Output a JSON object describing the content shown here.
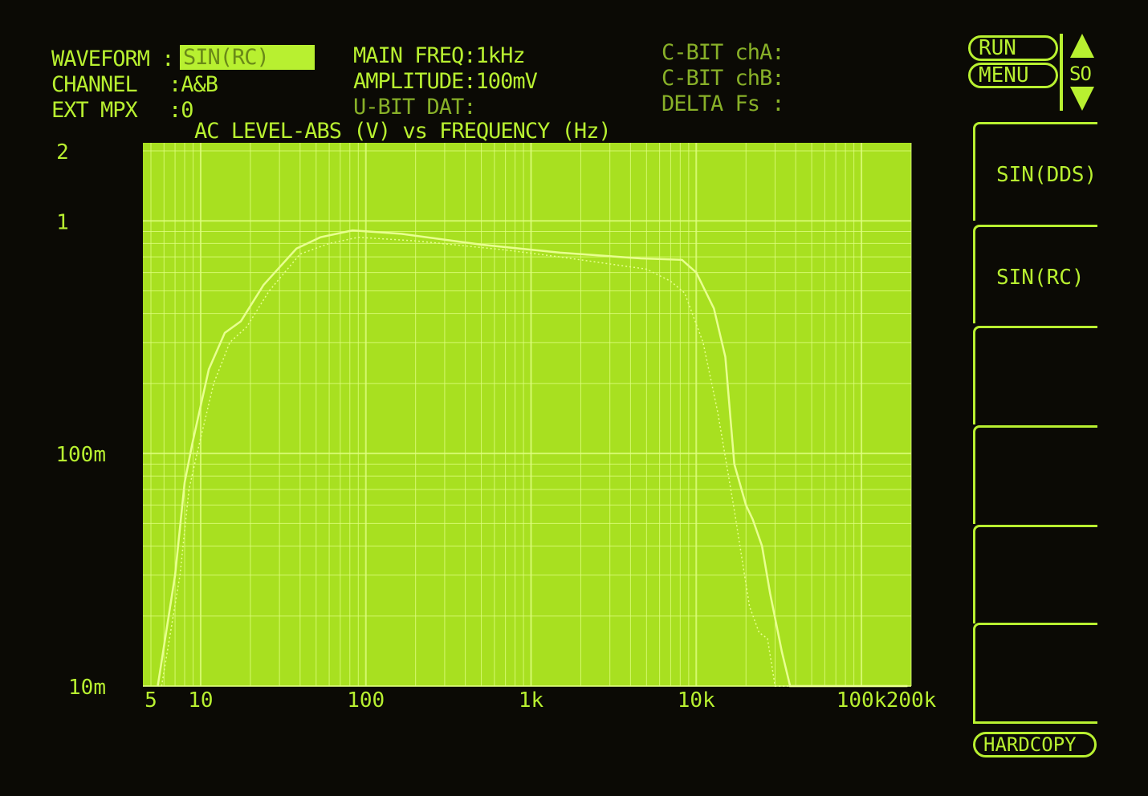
{
  "header": {
    "waveform_label": "WAVEFORM :",
    "waveform_value": "SIN(RC)",
    "channel_label": "CHANNEL",
    "channel_value": ":A&B",
    "ext_mpx_label": "EXT MPX",
    "ext_mpx_value": ":0",
    "main_freq": "MAIN FREQ:1kHz",
    "amplitude": "AMPLITUDE:100mV",
    "ubit": "U-BIT DAT:",
    "cbit_a": "C-BIT chA:",
    "cbit_b": "C-BIT chB:",
    "delta_fs": "DELTA Fs :"
  },
  "controls": {
    "run": "RUN",
    "menu": "MENU",
    "so": "SO",
    "hardcopy": "HARDCOPY"
  },
  "softkeys": [
    "SIN(DDS)",
    "SIN(RC)",
    "",
    "",
    "",
    ""
  ],
  "colors": {
    "screen": "#a8e020",
    "trace": "#e8ff90",
    "text": "#b8f030",
    "background": "#0b0a05"
  },
  "chart_data": {
    "type": "line",
    "title": "AC LEVEL-ABS (V) vs FREQUENCY (Hz)",
    "x_scale": "log",
    "y_scale": "log",
    "xlim": [
      5,
      200000
    ],
    "ylim": [
      0.01,
      2
    ],
    "x_ticks": [
      {
        "v": 5,
        "label": "5"
      },
      {
        "v": 10,
        "label": "10"
      },
      {
        "v": 100,
        "label": "100"
      },
      {
        "v": 1000,
        "label": "1k"
      },
      {
        "v": 10000,
        "label": "10k"
      },
      {
        "v": 100000,
        "label": "100k"
      },
      {
        "v": 200000,
        "label": "200k"
      }
    ],
    "y_ticks": [
      {
        "v": 2,
        "label": "2"
      },
      {
        "v": 1,
        "label": "1"
      },
      {
        "v": 0.1,
        "label": "100m"
      },
      {
        "v": 0.01,
        "label": "10m"
      }
    ],
    "grid": true,
    "series": [
      {
        "style": "solid",
        "points": [
          [
            5.5,
            0.01
          ],
          [
            7,
            0.03
          ],
          [
            8,
            0.075
          ],
          [
            8.9,
            0.11
          ],
          [
            11.2,
            0.23
          ],
          [
            14,
            0.33
          ],
          [
            17.5,
            0.37
          ],
          [
            24,
            0.53
          ],
          [
            38,
            0.76
          ],
          [
            53,
            0.85
          ],
          [
            83,
            0.91
          ],
          [
            164,
            0.88
          ],
          [
            500,
            0.79
          ],
          [
            1500,
            0.73
          ],
          [
            4600,
            0.69
          ],
          [
            8200,
            0.68
          ],
          [
            10000,
            0.6
          ],
          [
            12800,
            0.42
          ],
          [
            15000,
            0.26
          ],
          [
            17000,
            0.09
          ],
          [
            20000,
            0.06
          ],
          [
            22000,
            0.052
          ],
          [
            25000,
            0.04
          ],
          [
            28000,
            0.025
          ],
          [
            33000,
            0.014
          ],
          [
            37000,
            0.01
          ],
          [
            190000,
            0.01
          ]
        ]
      },
      {
        "style": "dotted",
        "points": [
          [
            5.8,
            0.01
          ],
          [
            7.5,
            0.03
          ],
          [
            8.5,
            0.07
          ],
          [
            9.5,
            0.1
          ],
          [
            12,
            0.2
          ],
          [
            15,
            0.3
          ],
          [
            19,
            0.35
          ],
          [
            26,
            0.5
          ],
          [
            40,
            0.72
          ],
          [
            60,
            0.8
          ],
          [
            90,
            0.85
          ],
          [
            200,
            0.82
          ],
          [
            700,
            0.75
          ],
          [
            1500,
            0.7
          ],
          [
            5000,
            0.62
          ],
          [
            7000,
            0.55
          ],
          [
            8500,
            0.49
          ],
          [
            11000,
            0.3
          ],
          [
            13500,
            0.15
          ],
          [
            17000,
            0.057
          ],
          [
            21000,
            0.022
          ],
          [
            24000,
            0.017
          ],
          [
            27000,
            0.016
          ],
          [
            30000,
            0.01
          ],
          [
            190000,
            0.01
          ]
        ]
      }
    ]
  }
}
